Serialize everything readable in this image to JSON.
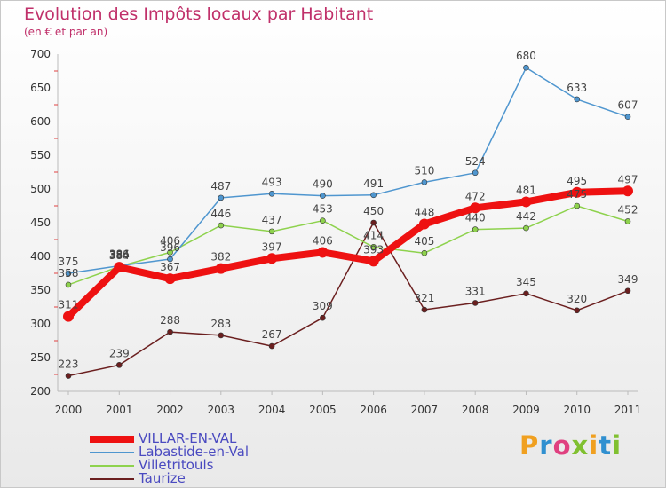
{
  "title": "Evolution des Impôts locaux par Habitant",
  "subtitle": "(en € et par an)",
  "logo": {
    "parts": [
      {
        "text": "P",
        "color": "#f0a020"
      },
      {
        "text": "r",
        "color": "#3090d0"
      },
      {
        "text": "o",
        "color": "#e04080"
      },
      {
        "text": "x",
        "color": "#80c030"
      },
      {
        "text": "i",
        "color": "#f0a020"
      },
      {
        "text": "t",
        "color": "#3090d0"
      },
      {
        "text": "i",
        "color": "#80c030"
      }
    ]
  },
  "chart_data": {
    "type": "line",
    "categories": [
      "2000",
      "2001",
      "2002",
      "2003",
      "2004",
      "2005",
      "2006",
      "2007",
      "2008",
      "2009",
      "2010",
      "2011"
    ],
    "ylim": [
      200,
      700
    ],
    "yticks": [
      200,
      250,
      300,
      350,
      400,
      450,
      500,
      550,
      600,
      650,
      700
    ],
    "grid": false,
    "legend_position": "bottom-left",
    "series": [
      {
        "name": "VILLAR-EN-VAL",
        "color": "#ee1111",
        "values": [
          311,
          384,
          367,
          382,
          397,
          406,
          393,
          448,
          472,
          481,
          495,
          497
        ],
        "labels": [
          "311",
          "384",
          "367",
          "382",
          "397",
          "406",
          "393",
          "448",
          "472",
          "481",
          "495",
          "497"
        ]
      },
      {
        "name": "Labastide-en-Val",
        "color": "#4f96cf",
        "values": [
          375,
          386,
          396,
          487,
          493,
          490,
          491,
          510,
          524,
          680,
          633,
          607
        ],
        "labels": [
          "375",
          "386",
          "396",
          "487",
          "493",
          "490",
          "491",
          "510",
          "524",
          "680",
          "633",
          "607"
        ]
      },
      {
        "name": "Villetritouls",
        "color": "#8ed24d",
        "values": [
          358,
          385,
          406,
          446,
          437,
          453,
          414,
          405,
          440,
          442,
          475,
          452
        ],
        "labels": [
          "358",
          "385",
          "406",
          "446",
          "437",
          "453",
          "414",
          "405",
          "440",
          "442",
          "475",
          "452"
        ]
      },
      {
        "name": "Taurize",
        "color": "#6b1f1f",
        "values": [
          223,
          239,
          288,
          283,
          267,
          309,
          450,
          321,
          331,
          345,
          320,
          349
        ],
        "labels": [
          "223",
          "239",
          "288",
          "283",
          "267",
          "309",
          "450",
          "321",
          "331",
          "345",
          "320",
          "349"
        ]
      }
    ]
  }
}
